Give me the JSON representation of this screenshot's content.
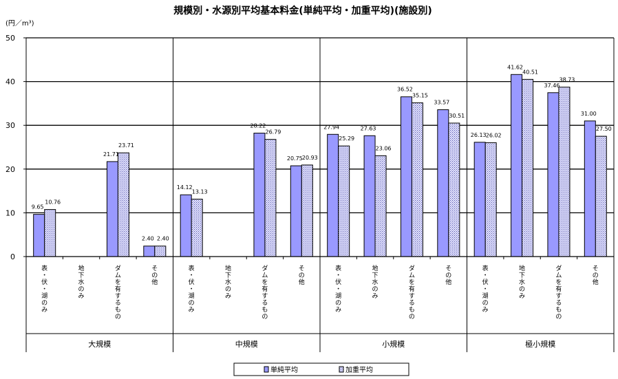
{
  "chart_data": {
    "type": "bar",
    "title": "規模別・水源別平均基本料金(単純平均・加重平均)(施設別)",
    "unit_label": "(円／m³)",
    "ylim": [
      0,
      50
    ],
    "yticks": [
      "0",
      "10",
      "20",
      "30",
      "40",
      "50"
    ],
    "grid": true,
    "legend_position": "bottom",
    "groups": [
      {
        "name": "大規模",
        "categories": [
          "表・伏・湖のみ",
          "地下水のみ",
          "ダムを有するもの",
          "その他"
        ]
      },
      {
        "name": "中規模",
        "categories": [
          "表・伏・湖のみ",
          "地下水のみ",
          "ダムを有するもの",
          "その他"
        ]
      },
      {
        "name": "小規模",
        "categories": [
          "表・伏・湖のみ",
          "地下水のみ",
          "ダムを有するもの",
          "その他"
        ]
      },
      {
        "name": "極小規模",
        "categories": [
          "表・伏・湖のみ",
          "地下水のみ",
          "ダムを有するもの",
          "その他"
        ]
      }
    ],
    "series": [
      {
        "name": "単純平均",
        "color": "#9999ff",
        "values": [
          9.65,
          null,
          21.71,
          2.4,
          14.12,
          null,
          28.22,
          20.75,
          27.94,
          27.63,
          36.52,
          33.57,
          26.13,
          41.62,
          37.46,
          31.0
        ],
        "labels": [
          "9.65",
          "",
          "21.71",
          "2.40",
          "14.12",
          "",
          "28.22",
          "20.75",
          "27.94",
          "27.63",
          "36.52",
          "33.57",
          "26.13",
          "41.62",
          "37.46",
          "31.00"
        ]
      },
      {
        "name": "加重平均",
        "color": "#ccccff",
        "values": [
          10.76,
          null,
          23.71,
          2.4,
          13.13,
          null,
          26.79,
          20.93,
          25.29,
          23.06,
          35.15,
          30.51,
          26.02,
          40.51,
          38.73,
          27.5
        ],
        "labels": [
          "10.76",
          "",
          "23.71",
          "2.40",
          "13.13",
          "",
          "26.79",
          "20.93",
          "25.29",
          "23.06",
          "35.15",
          "30.51",
          "26.02",
          "40.51",
          "38.73",
          "27.50"
        ]
      }
    ]
  }
}
